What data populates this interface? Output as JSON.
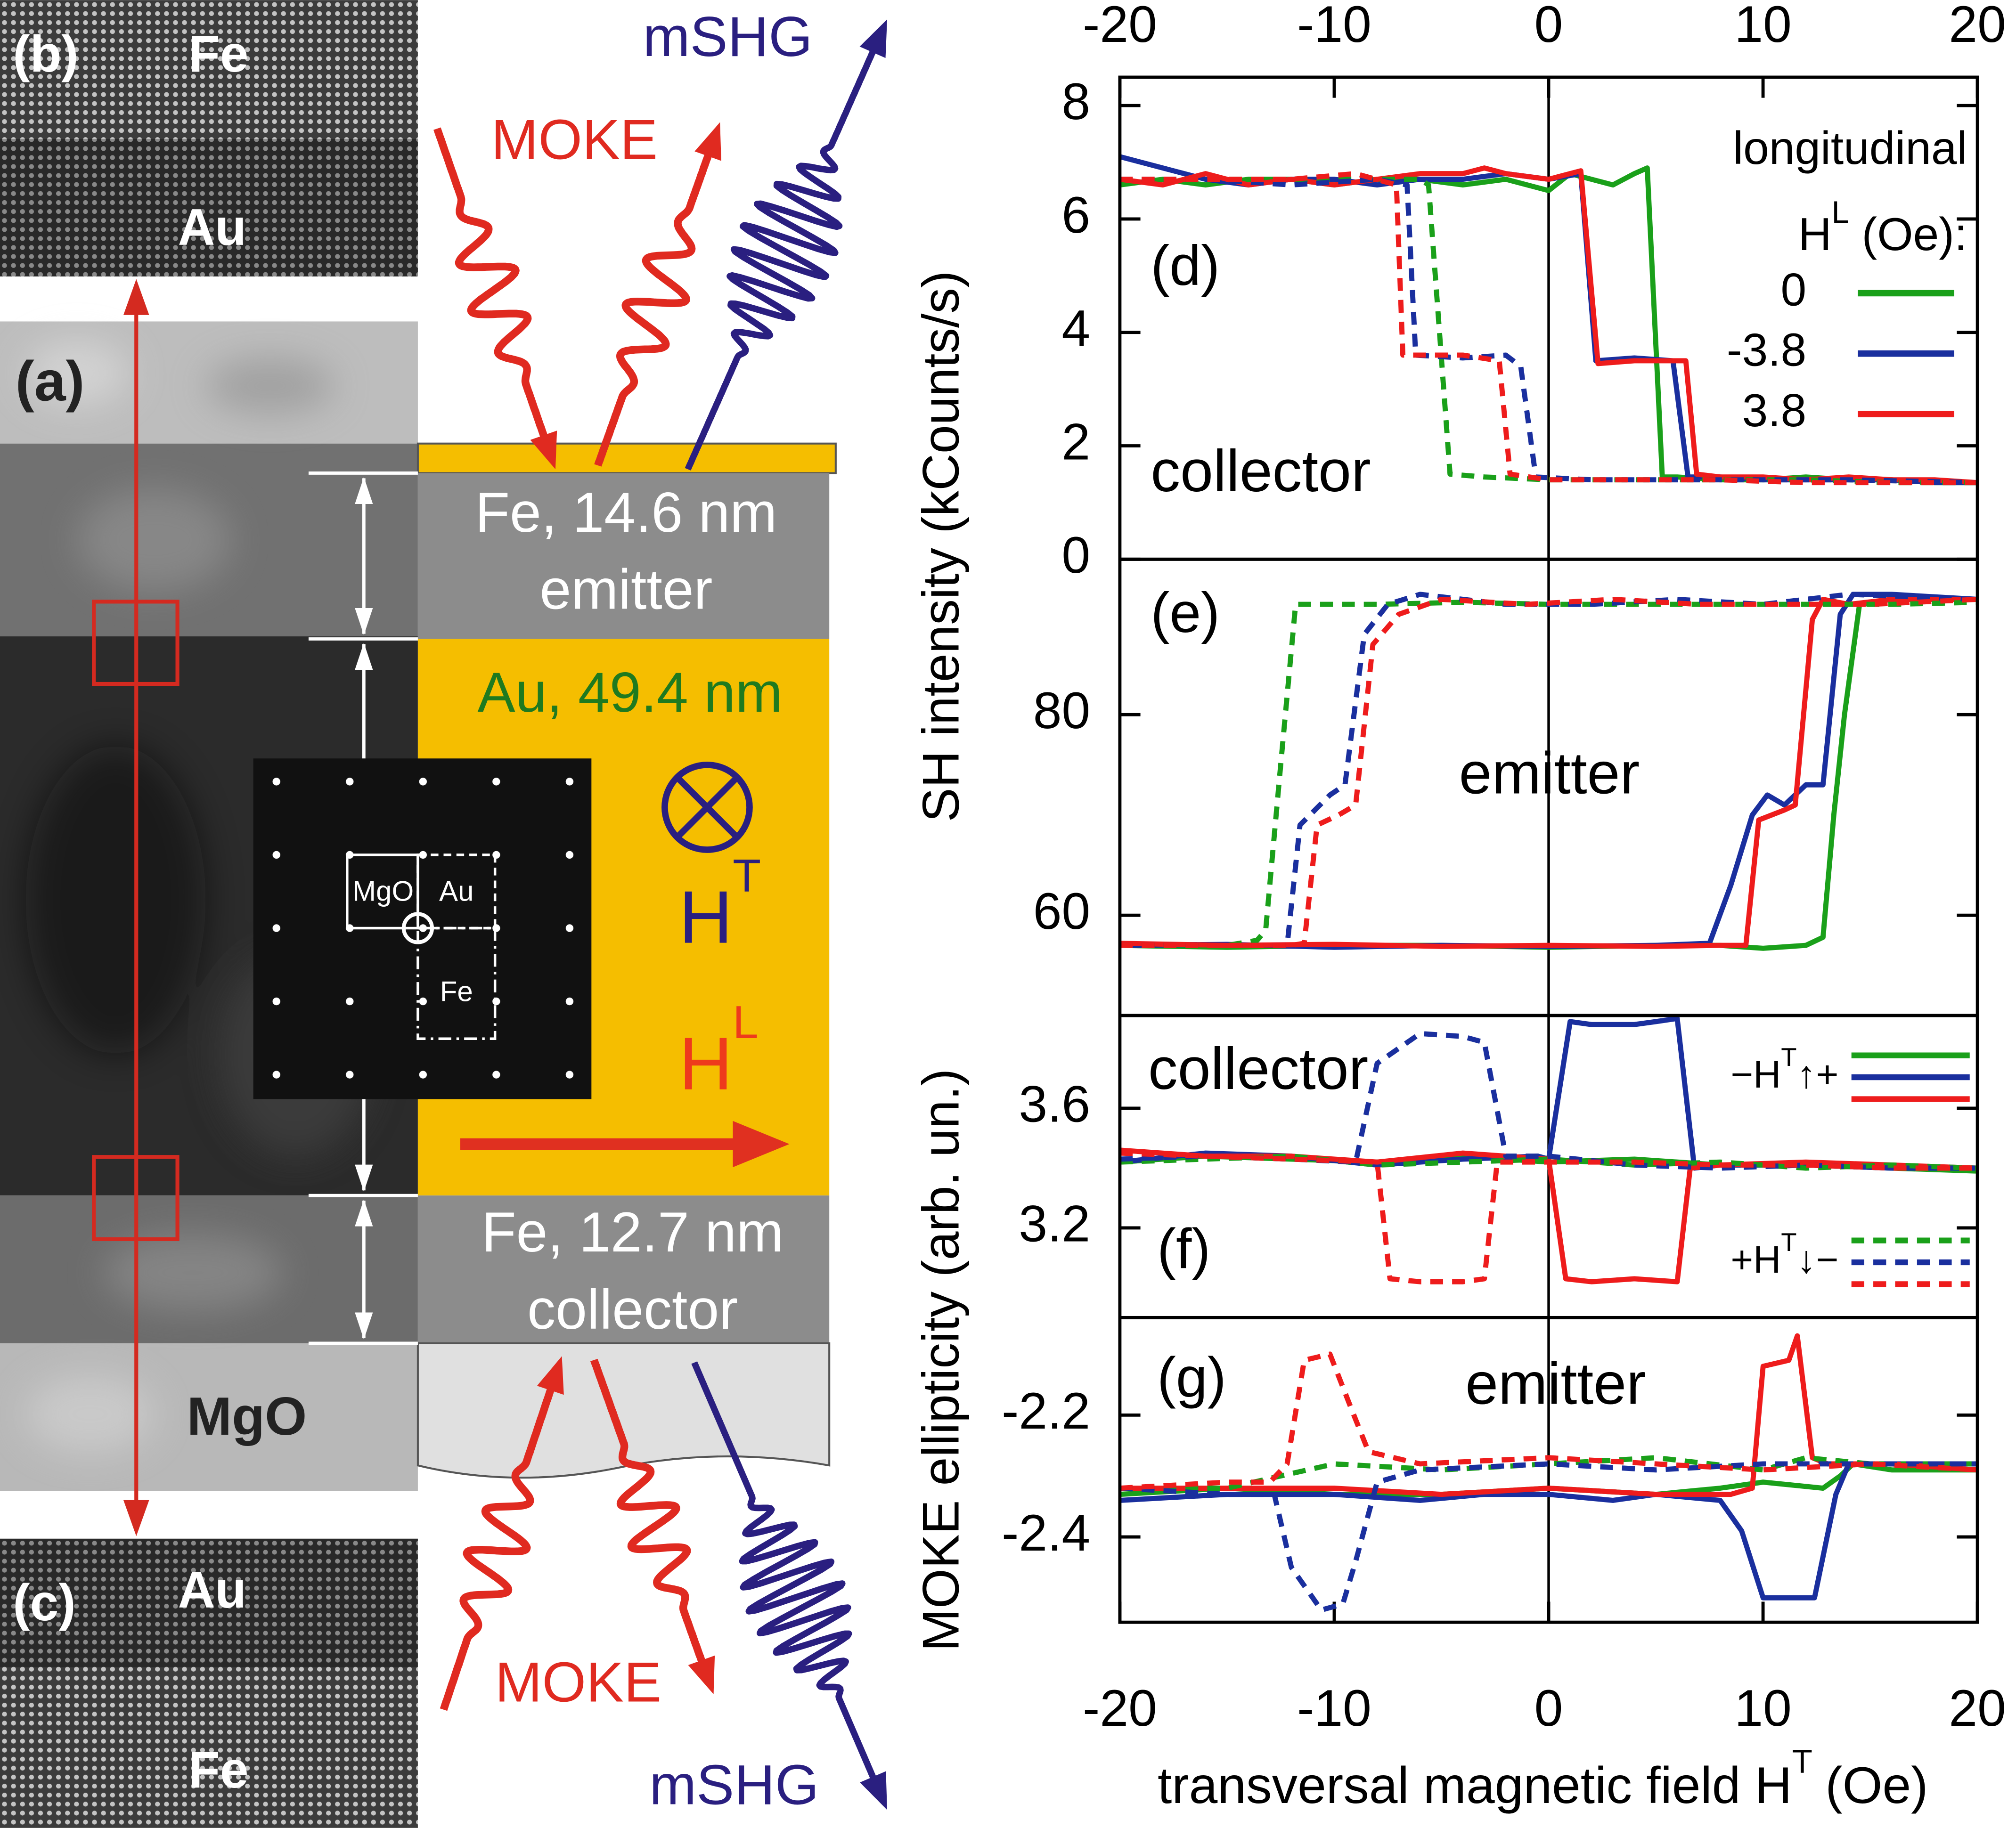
{
  "diagram": {
    "panels": {
      "a": "(a)",
      "b": "(b)",
      "c": "(c)"
    },
    "tem_b": [
      "Fe",
      "Au"
    ],
    "tem_a": "MgO",
    "tem_c": [
      "Au",
      "Fe"
    ],
    "beams_top": {
      "moke": "MOKE",
      "shg": "mSHG"
    },
    "beams_bottom": {
      "moke": "MOKE",
      "shg": "mSHG"
    },
    "layers": {
      "emitter": [
        "Fe, 14.6 nm",
        "emitter"
      ],
      "au": "Au, 49.4 nm",
      "collector": [
        "Fe, 12.7 nm",
        "collector"
      ]
    },
    "diffraction": [
      "MgO",
      "Au",
      "Fe"
    ],
    "field_t": {
      "base": "H",
      "sup": "T"
    },
    "field_l": {
      "base": "H",
      "sup": "L"
    }
  },
  "chart_data": [
    {
      "type": "line",
      "panel_label": "(d)",
      "annotation": "collector",
      "x_tick_labels": "top",
      "xlim": [
        -20,
        20
      ],
      "xticks": [
        -20,
        -10,
        0,
        10,
        20
      ],
      "ylim": [
        0,
        8.5
      ],
      "yticks": [
        0,
        2,
        4,
        6,
        8
      ],
      "ylabel": "SH intensity (kCounts/s)",
      "legend_title": "longitudinal",
      "legend_field": {
        "base": "H",
        "sup": "L",
        "rest": "(Oe):"
      },
      "legend": [
        {
          "label": "0",
          "color": "#1aa01a"
        },
        {
          "label": "-3.8",
          "color": "#1a2f9e"
        },
        {
          "label": "3.8",
          "color": "#ee1c1c"
        }
      ],
      "series": [
        {
          "color": "#1aa01a",
          "dash": false,
          "x": [
            -20,
            -18,
            -16,
            -14,
            -12,
            -10,
            -8,
            -6,
            -4,
            -2,
            0,
            1,
            2,
            3,
            4,
            4.6,
            5.3,
            6,
            8,
            10,
            12,
            14,
            16,
            18,
            20
          ],
          "values": [
            6.6,
            6.7,
            6.6,
            6.7,
            6.7,
            6.6,
            6.7,
            6.7,
            6.6,
            6.7,
            6.5,
            6.8,
            6.7,
            6.6,
            6.8,
            6.9,
            1.45,
            1.45,
            1.4,
            1.4,
            1.45,
            1.4,
            1.4,
            1.35,
            1.35
          ]
        },
        {
          "color": "#1a2f9e",
          "dash": false,
          "x": [
            -20,
            -19,
            -16,
            -14,
            -12,
            -10,
            -8,
            -6,
            -4,
            -2,
            0,
            1.5,
            2.2,
            4,
            5.8,
            6.5,
            8,
            10,
            12,
            14,
            16,
            18,
            20
          ],
          "values": [
            7.1,
            7.0,
            6.7,
            6.6,
            6.7,
            6.7,
            6.6,
            6.7,
            6.7,
            6.8,
            6.7,
            6.8,
            3.5,
            3.55,
            3.5,
            1.45,
            1.45,
            1.4,
            1.4,
            1.4,
            1.4,
            1.35,
            1.35
          ]
        },
        {
          "color": "#ee1c1c",
          "dash": false,
          "x": [
            -20,
            -18,
            -16,
            -14,
            -12,
            -10,
            -8,
            -6,
            -4,
            -3,
            -2,
            0,
            1.5,
            2.3,
            4,
            6.4,
            6.9,
            8,
            10,
            12,
            14,
            16,
            18,
            20
          ],
          "values": [
            6.7,
            6.6,
            6.8,
            6.6,
            6.7,
            6.6,
            6.7,
            6.8,
            6.8,
            6.9,
            6.8,
            6.7,
            6.85,
            3.45,
            3.5,
            3.5,
            1.5,
            1.45,
            1.45,
            1.4,
            1.45,
            1.4,
            1.4,
            1.35
          ]
        },
        {
          "color": "#1aa01a",
          "dash": true,
          "x": [
            -20,
            -16,
            -12,
            -8,
            -6,
            -5.6,
            -4.6,
            -3,
            0,
            4,
            8,
            12,
            16,
            20
          ],
          "values": [
            6.7,
            6.7,
            6.7,
            6.7,
            6.7,
            6.6,
            1.5,
            1.45,
            1.4,
            1.4,
            1.4,
            1.4,
            1.35,
            1.35
          ]
        },
        {
          "color": "#1a2f9e",
          "dash": true,
          "x": [
            -20,
            -16,
            -12,
            -8,
            -6.6,
            -6.2,
            -4,
            -2,
            -1.3,
            -0.6,
            2,
            6,
            10,
            14,
            20
          ],
          "values": [
            6.7,
            6.7,
            6.6,
            6.7,
            6.6,
            3.6,
            3.55,
            3.6,
            3.4,
            1.45,
            1.4,
            1.4,
            1.4,
            1.4,
            1.35
          ]
        },
        {
          "color": "#ee1c1c",
          "dash": true,
          "x": [
            -20,
            -16,
            -12,
            -9,
            -7.1,
            -6.8,
            -4,
            -2.3,
            -1.8,
            0,
            4,
            8,
            12,
            16,
            20
          ],
          "values": [
            6.7,
            6.7,
            6.7,
            6.8,
            6.6,
            3.6,
            3.6,
            3.5,
            1.5,
            1.4,
            1.4,
            1.4,
            1.35,
            1.35,
            1.35
          ]
        }
      ]
    },
    {
      "type": "line",
      "panel_label": "(e)",
      "annotation": "emitter",
      "xlim": [
        -20,
        20
      ],
      "ylim": [
        50,
        95.5
      ],
      "yticks": [
        60,
        80
      ],
      "series": [
        {
          "color": "#1aa01a",
          "dash": false,
          "x": [
            -20,
            -15,
            -10,
            -5,
            0,
            5,
            8,
            10,
            12,
            12.8,
            13.3,
            13.8,
            14.5,
            16,
            20
          ],
          "values": [
            57,
            56.8,
            57,
            57,
            56.8,
            57,
            57,
            56.7,
            57,
            57.8,
            70,
            80,
            91,
            91.5,
            91.5
          ]
        },
        {
          "color": "#1a2f9e",
          "dash": false,
          "x": [
            -20,
            -15,
            -10,
            -5,
            0,
            5,
            7.5,
            8.5,
            9.5,
            10.2,
            11,
            12,
            12.8,
            13.6,
            14.2,
            16,
            20
          ],
          "values": [
            57,
            57.1,
            56.8,
            57,
            56.9,
            57,
            57.2,
            63,
            70,
            72,
            71,
            73,
            73,
            90,
            92,
            92,
            91.5
          ]
        },
        {
          "color": "#ee1c1c",
          "dash": false,
          "x": [
            -20,
            -15,
            -10,
            -5,
            0,
            5,
            8,
            9.2,
            9.8,
            11,
            11.5,
            12.3,
            12.8,
            14,
            16,
            20
          ],
          "values": [
            57.2,
            57,
            57.1,
            56.9,
            57,
            56.9,
            57,
            57,
            69.5,
            70.5,
            71,
            89.5,
            91.5,
            91,
            91.5,
            91.5
          ]
        },
        {
          "color": "#1aa01a",
          "dash": true,
          "x": [
            -20,
            -15,
            -13.6,
            -13.2,
            -12.5,
            -11.8,
            -8,
            -4,
            0,
            4,
            8,
            12,
            16,
            20
          ],
          "values": [
            57,
            57,
            57.5,
            58.5,
            75,
            91,
            91,
            91.2,
            91,
            91,
            91,
            91,
            91,
            91.2
          ]
        },
        {
          "color": "#1a2f9e",
          "dash": true,
          "x": [
            -20,
            -15,
            -12.6,
            -12.2,
            -11.6,
            -10.2,
            -9.5,
            -8.6,
            -7.5,
            -6,
            -2,
            2,
            6,
            10,
            14,
            20
          ],
          "values": [
            57,
            57,
            57,
            57,
            69,
            72,
            73,
            88,
            91,
            92,
            91,
            91,
            91.5,
            91,
            92,
            91.5
          ]
        },
        {
          "color": "#ee1c1c",
          "dash": true,
          "x": [
            -20,
            -15,
            -12,
            -11.4,
            -10.8,
            -9.8,
            -9,
            -8.2,
            -7,
            -5,
            -1,
            3,
            7,
            11,
            15,
            20
          ],
          "values": [
            57,
            57,
            57,
            57.2,
            69,
            70,
            71,
            87,
            90,
            91.5,
            91,
            91.5,
            91,
            91,
            91,
            91.5
          ]
        }
      ]
    },
    {
      "type": "line",
      "panel_label": "(f)",
      "annotation": "collector",
      "xlim": [
        -20,
        20
      ],
      "ylim": [
        2.9,
        3.91
      ],
      "yticks": [
        3.2,
        3.6
      ],
      "ylabel": "MOKE ellipticity (arb. un.)",
      "legend": [
        {
          "label": {
            "pre": "−H",
            "sup": "T",
            "post": "↑+"
          },
          "dash": false,
          "colors": [
            "#1aa01a",
            "#1a2f9e",
            "#ee1c1c"
          ]
        },
        {
          "label": {
            "pre": "+H",
            "sup": "T",
            "post": "↓−"
          },
          "dash": true,
          "colors": [
            "#1aa01a",
            "#1a2f9e",
            "#ee1c1c"
          ]
        }
      ],
      "series": [
        {
          "color": "#1aa01a",
          "dash": false,
          "x": [
            -20,
            -16,
            -12,
            -8,
            -4,
            0,
            4,
            8,
            12,
            16,
            20
          ],
          "values": [
            3.42,
            3.44,
            3.43,
            3.42,
            3.44,
            3.42,
            3.43,
            3.41,
            3.41,
            3.4,
            3.39
          ]
        },
        {
          "color": "#1a2f9e",
          "dash": false,
          "x": [
            -20,
            -16,
            -12,
            -8,
            -4,
            -0.5,
            0,
            1,
            2,
            4,
            5,
            6,
            6.8,
            8,
            12,
            16,
            20
          ],
          "values": [
            3.42,
            3.45,
            3.44,
            3.41,
            3.43,
            3.44,
            3.43,
            3.89,
            3.88,
            3.88,
            3.89,
            3.9,
            3.4,
            3.41,
            3.41,
            3.4,
            3.4
          ]
        },
        {
          "color": "#ee1c1c",
          "dash": false,
          "x": [
            -20,
            -16,
            -12,
            -8,
            -4,
            -2,
            0,
            0.8,
            2,
            4,
            6,
            6.6,
            8,
            12,
            16,
            20
          ],
          "values": [
            3.46,
            3.44,
            3.44,
            3.42,
            3.45,
            3.44,
            3.43,
            3.03,
            3.02,
            3.03,
            3.02,
            3.4,
            3.41,
            3.42,
            3.41,
            3.4
          ]
        },
        {
          "color": "#1aa01a",
          "dash": true,
          "x": [
            -20,
            -16,
            -12,
            -8,
            -4,
            0,
            4,
            8,
            12,
            16,
            20
          ],
          "values": [
            3.42,
            3.43,
            3.44,
            3.41,
            3.42,
            3.43,
            3.41,
            3.42,
            3.4,
            3.41,
            3.4
          ]
        },
        {
          "color": "#1a2f9e",
          "dash": true,
          "x": [
            -20,
            -16,
            -12,
            -9,
            -8,
            -6,
            -4,
            -3,
            -2,
            0,
            4,
            8,
            12,
            16,
            20
          ],
          "values": [
            3.43,
            3.44,
            3.43,
            3.42,
            3.75,
            3.85,
            3.84,
            3.82,
            3.44,
            3.44,
            3.41,
            3.4,
            3.41,
            3.4,
            3.4
          ]
        },
        {
          "color": "#ee1c1c",
          "dash": true,
          "x": [
            -20,
            -16,
            -12,
            -8,
            -7.4,
            -6,
            -4,
            -3,
            -2.4,
            0,
            4,
            8,
            12,
            16,
            20
          ],
          "values": [
            3.45,
            3.44,
            3.43,
            3.42,
            3.03,
            3.02,
            3.02,
            3.03,
            3.42,
            3.42,
            3.42,
            3.41,
            3.41,
            3.4,
            3.4
          ]
        }
      ]
    },
    {
      "type": "line",
      "panel_label": "(g)",
      "annotation": "emitter",
      "x_tick_labels": "bottom",
      "xlim": [
        -20,
        20
      ],
      "xticks": [
        -20,
        -10,
        0,
        10,
        20
      ],
      "ylim": [
        -2.54,
        -2.04
      ],
      "yticks": [
        -2.4,
        -2.2
      ],
      "xlabel": {
        "base": "transversal magnetic field H",
        "sup": "T",
        "rest": "(Oe)"
      },
      "series": [
        {
          "color": "#1aa01a",
          "dash": false,
          "x": [
            -20,
            -15,
            -10,
            -5,
            0,
            5,
            8,
            10,
            12.8,
            13.6,
            14.2,
            16,
            20
          ],
          "values": [
            -2.33,
            -2.32,
            -2.33,
            -2.33,
            -2.32,
            -2.33,
            -2.32,
            -2.31,
            -2.32,
            -2.3,
            -2.28,
            -2.29,
            -2.29
          ]
        },
        {
          "color": "#1a2f9e",
          "dash": false,
          "x": [
            -20,
            -15,
            -10,
            -6,
            -3,
            0,
            3,
            5,
            8,
            9,
            10,
            11,
            12.4,
            13.4,
            14,
            16,
            20
          ],
          "values": [
            -2.34,
            -2.33,
            -2.33,
            -2.34,
            -2.33,
            -2.33,
            -2.34,
            -2.33,
            -2.34,
            -2.39,
            -2.5,
            -2.5,
            -2.5,
            -2.33,
            -2.28,
            -2.28,
            -2.28
          ]
        },
        {
          "color": "#ee1c1c",
          "dash": false,
          "x": [
            -20,
            -15,
            -10,
            -5,
            0,
            5,
            8.5,
            9.5,
            10,
            11.2,
            11.6,
            12.3,
            13,
            16,
            20
          ],
          "values": [
            -2.32,
            -2.32,
            -2.32,
            -2.33,
            -2.32,
            -2.33,
            -2.33,
            -2.32,
            -2.12,
            -2.11,
            -2.07,
            -2.27,
            -2.28,
            -2.28,
            -2.29
          ]
        },
        {
          "color": "#1aa01a",
          "dash": true,
          "x": [
            -20,
            -15,
            -12.5,
            -10,
            -5,
            0,
            5,
            10,
            12,
            15,
            20
          ],
          "values": [
            -2.32,
            -2.32,
            -2.3,
            -2.28,
            -2.29,
            -2.28,
            -2.27,
            -2.29,
            -2.27,
            -2.28,
            -2.28
          ]
        },
        {
          "color": "#1a2f9e",
          "dash": true,
          "x": [
            -20,
            -15,
            -12.8,
            -12,
            -10.6,
            -9.6,
            -9,
            -8,
            -6,
            0,
            5,
            10,
            15,
            20
          ],
          "values": [
            -2.32,
            -2.33,
            -2.33,
            -2.45,
            -2.52,
            -2.51,
            -2.44,
            -2.31,
            -2.29,
            -2.28,
            -2.29,
            -2.28,
            -2.28,
            -2.28
          ]
        },
        {
          "color": "#ee1c1c",
          "dash": true,
          "x": [
            -20,
            -15,
            -13,
            -12.2,
            -11.4,
            -10.2,
            -9.2,
            -8.4,
            -6,
            0,
            5,
            10,
            15,
            20
          ],
          "values": [
            -2.32,
            -2.31,
            -2.31,
            -2.28,
            -2.11,
            -2.1,
            -2.19,
            -2.26,
            -2.28,
            -2.27,
            -2.28,
            -2.29,
            -2.28,
            -2.29
          ]
        }
      ]
    }
  ]
}
